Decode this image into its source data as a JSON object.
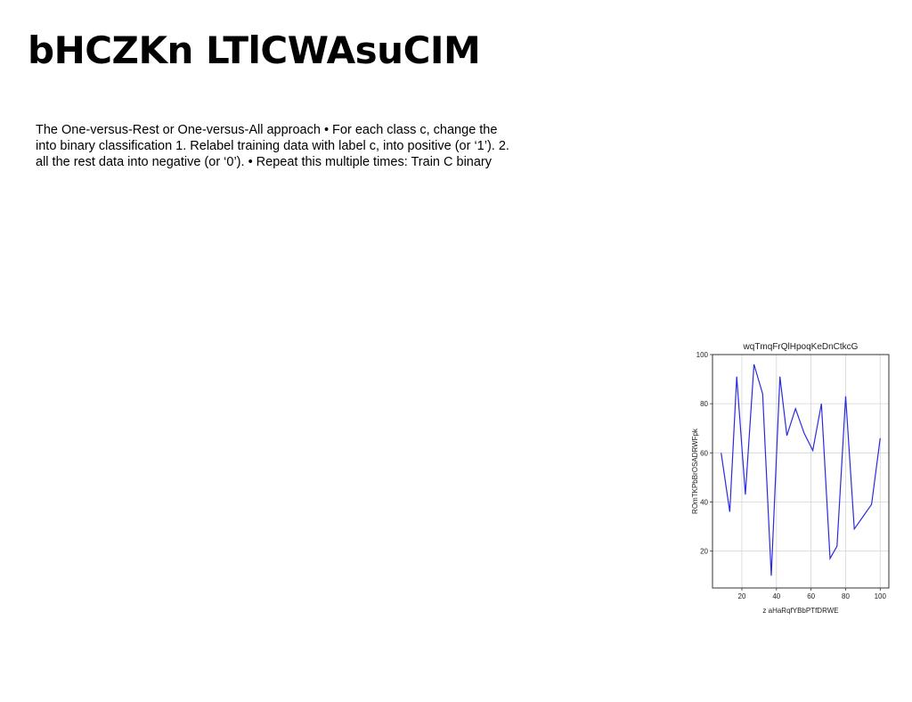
{
  "slide": {
    "title": "bHCZKn LTlCWAsuCIM",
    "body_lines": [
      "The One-versus-Rest or One-versus-All approach • For each class c, change the",
      "into binary classification 1. Relabel training data with label c, into positive (or ‘1’). 2.",
      "all the rest data into negative (or ‘0’). • Repeat this multiple times: Train C binary"
    ]
  },
  "chart_data": {
    "type": "line",
    "title": "wqTmqFrQlHpoqKeDnCtkcG",
    "xlabel": "z aHaRqfYBbPTfDRWE",
    "ylabel": "ROmTKPbBrOSADRWFpk",
    "xlim": [
      3,
      105
    ],
    "ylim": [
      5,
      100
    ],
    "x_ticks": [
      20,
      40,
      60,
      80,
      100
    ],
    "y_ticks": [
      20,
      40,
      60,
      80,
      100
    ],
    "grid": true,
    "color": "#2b2bdd",
    "series": [
      {
        "x": [
          8,
          13,
          17,
          22,
          27,
          32,
          37,
          42,
          46,
          51,
          56,
          61,
          66,
          71,
          75,
          80,
          85,
          90,
          95,
          100
        ],
        "values": [
          60,
          36,
          91,
          43,
          96,
          84,
          10,
          91,
          67,
          78,
          68,
          61,
          80,
          17,
          22,
          83,
          29,
          34,
          39,
          66
        ]
      }
    ]
  }
}
